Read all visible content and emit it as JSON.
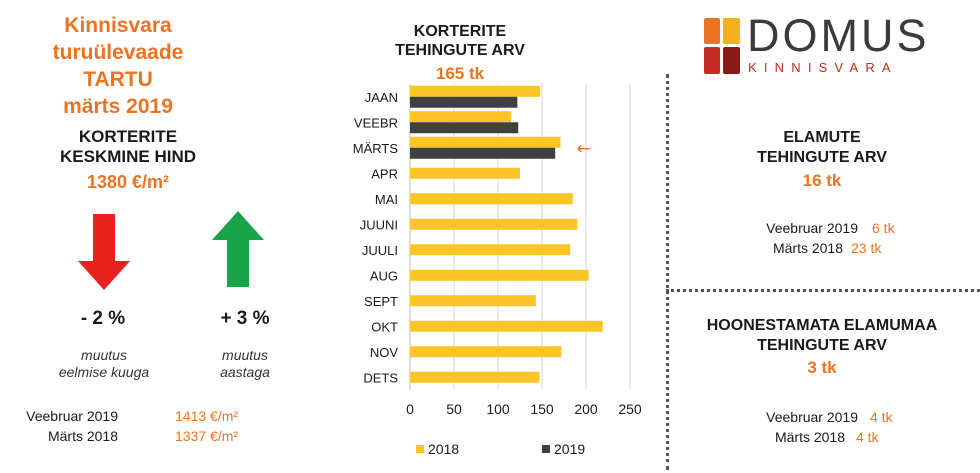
{
  "header": {
    "title_line1": "Kinnisvara turuülevaade",
    "title_line2": "TARTU",
    "title_line3": "märts 2019"
  },
  "apartment_price": {
    "heading_line1": "KORTERITE",
    "heading_line2": "KESKMINE HIND",
    "value": "1380 €/m²",
    "monthly_change": "- 2 %",
    "monthly_label_line1": "muutus",
    "monthly_label_line2": "eelmise kuuga",
    "monthly_direction": "down",
    "monthly_color": "#e8231f",
    "yearly_change": "+ 3 %",
    "yearly_label_line1": "muutus",
    "yearly_label_line2": "aastaga",
    "yearly_direction": "up",
    "yearly_color": "#19a44a",
    "comparisons": [
      {
        "label": "Veebruar 2019",
        "value": "1413 €/m²"
      },
      {
        "label": "Märts 2018",
        "value": "1337 €/m²"
      }
    ]
  },
  "apartment_transactions": {
    "heading_line1": "KORTERITE",
    "heading_line2": "TEHINGUTE ARV",
    "total": "165 tk"
  },
  "chart_data": {
    "type": "bar",
    "orientation": "horizontal",
    "categories": [
      "JAAN",
      "VEEBR",
      "MÄRTS",
      "APR",
      "MAI",
      "JUUNI",
      "JUULI",
      "AUG",
      "SEPT",
      "OKT",
      "NOV",
      "DETS"
    ],
    "series": [
      {
        "name": "2018",
        "color": "#fcc425",
        "values": [
          148,
          115,
          171,
          125,
          185,
          190,
          182,
          203,
          143,
          219,
          172,
          147
        ]
      },
      {
        "name": "2019",
        "color": "#404040",
        "values": [
          122,
          123,
          165,
          null,
          null,
          null,
          null,
          null,
          null,
          null,
          null,
          null
        ]
      }
    ],
    "xlim": [
      0,
      250
    ],
    "xticks": [
      0,
      50,
      100,
      150,
      200,
      250
    ],
    "grid": true,
    "legend": "bottom",
    "annotation": {
      "category": "MÄRTS",
      "symbol": "←",
      "color": "#ec7322"
    }
  },
  "logo": {
    "word": "DOMUS",
    "sub": "KINNISVARA",
    "colors": [
      "#ec7322",
      "#f6b21a",
      "#c32a22",
      "#8a1a16"
    ]
  },
  "homes": {
    "heading_line1": "ELAMUTE",
    "heading_line2": "TEHINGUTE ARV",
    "value": "16 tk",
    "comparisons": [
      {
        "label": "Veebruar 2019",
        "value": "6 tk"
      },
      {
        "label": "Märts 2018",
        "value": "23 tk"
      }
    ]
  },
  "land": {
    "heading_line1": "HOONESTAMATA ELAMUMAA",
    "heading_line2": "TEHINGUTE ARV",
    "value": "3 tk",
    "comparisons": [
      {
        "label": "Veebruar 2019",
        "value": "4 tk"
      },
      {
        "label": "Märts 2018",
        "value": "4 tk"
      }
    ]
  }
}
